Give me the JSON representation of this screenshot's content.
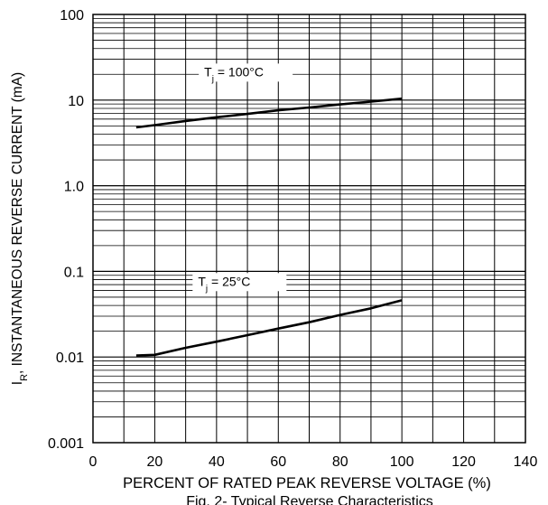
{
  "chart_data": {
    "type": "line",
    "title": "",
    "caption": "Fig. 2- Typical Reverse Characteristics",
    "xlabel": "PERCENT OF RATED PEAK REVERSE VOLTAGE (%)",
    "ylabel": {
      "prefix": "I",
      "sub": "R",
      "suffix": ", INSTANTANEOUS REVERSE CURRENT (mA)"
    },
    "xlim": [
      0,
      140
    ],
    "ylim": [
      0.001,
      100
    ],
    "yscale": "log",
    "grid": true,
    "x_ticks": [
      "0",
      "20",
      "40",
      "60",
      "80",
      "100",
      "120",
      "140"
    ],
    "y_ticks": [
      "0.001",
      "0.01",
      "0.1",
      "1.0",
      "10",
      "100"
    ],
    "series": [
      {
        "name": "Tj = 100°C",
        "label": {
          "pre": "T",
          "sub": "j",
          "post": " = 100°C"
        },
        "x": [
          14,
          20,
          30,
          40,
          50,
          60,
          70,
          80,
          90,
          100
        ],
        "y": [
          4.8,
          5.1,
          5.7,
          6.3,
          6.9,
          7.6,
          8.2,
          8.9,
          9.6,
          10.4
        ]
      },
      {
        "name": "Tj = 25°C",
        "label": {
          "pre": "T",
          "sub": "j",
          "post": " = 25°C"
        },
        "x": [
          14,
          20,
          30,
          40,
          50,
          60,
          70,
          80,
          90,
          100
        ],
        "y": [
          0.0104,
          0.0106,
          0.0128,
          0.0151,
          0.018,
          0.0215,
          0.0255,
          0.031,
          0.037,
          0.046
        ]
      }
    ]
  }
}
